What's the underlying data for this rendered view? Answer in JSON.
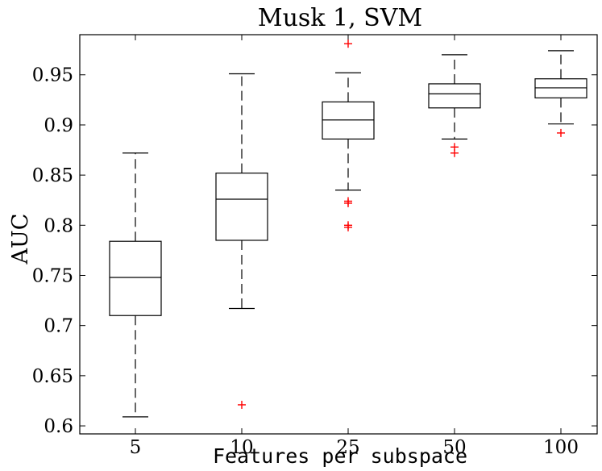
{
  "chart_data": {
    "type": "box",
    "title": "Musk 1, SVM",
    "xlabel": "Features per subspace",
    "ylabel": "AUC",
    "ylim": [
      0.592,
      0.99
    ],
    "yticks": [
      0.6,
      0.65,
      0.7,
      0.75,
      0.8,
      0.85,
      0.9,
      0.95
    ],
    "ytick_labels": [
      "0.6",
      "0.65",
      "0.7",
      "0.75",
      "0.8",
      "0.85",
      "0.9",
      "0.95"
    ],
    "categories": [
      "5",
      "10",
      "25",
      "50",
      "100"
    ],
    "grid": false,
    "outlier_color": "#ff0000",
    "box_color": "#000000",
    "boxes": [
      {
        "category": "5",
        "whisker_low": 0.609,
        "q1": 0.71,
        "median": 0.748,
        "q3": 0.784,
        "whisker_high": 0.872,
        "outliers": []
      },
      {
        "category": "10",
        "whisker_low": 0.717,
        "q1": 0.785,
        "median": 0.826,
        "q3": 0.852,
        "whisker_high": 0.951,
        "outliers": [
          0.621
        ]
      },
      {
        "category": "25",
        "whisker_low": 0.835,
        "q1": 0.886,
        "median": 0.905,
        "q3": 0.923,
        "whisker_high": 0.952,
        "outliers": [
          0.981,
          0.824,
          0.822,
          0.8,
          0.798
        ]
      },
      {
        "category": "50",
        "whisker_low": 0.886,
        "q1": 0.917,
        "median": 0.931,
        "q3": 0.941,
        "whisker_high": 0.97,
        "outliers": [
          0.878,
          0.872
        ]
      },
      {
        "category": "100",
        "whisker_low": 0.901,
        "q1": 0.927,
        "median": 0.937,
        "q3": 0.946,
        "whisker_high": 0.974,
        "outliers": [
          0.892
        ]
      }
    ]
  }
}
